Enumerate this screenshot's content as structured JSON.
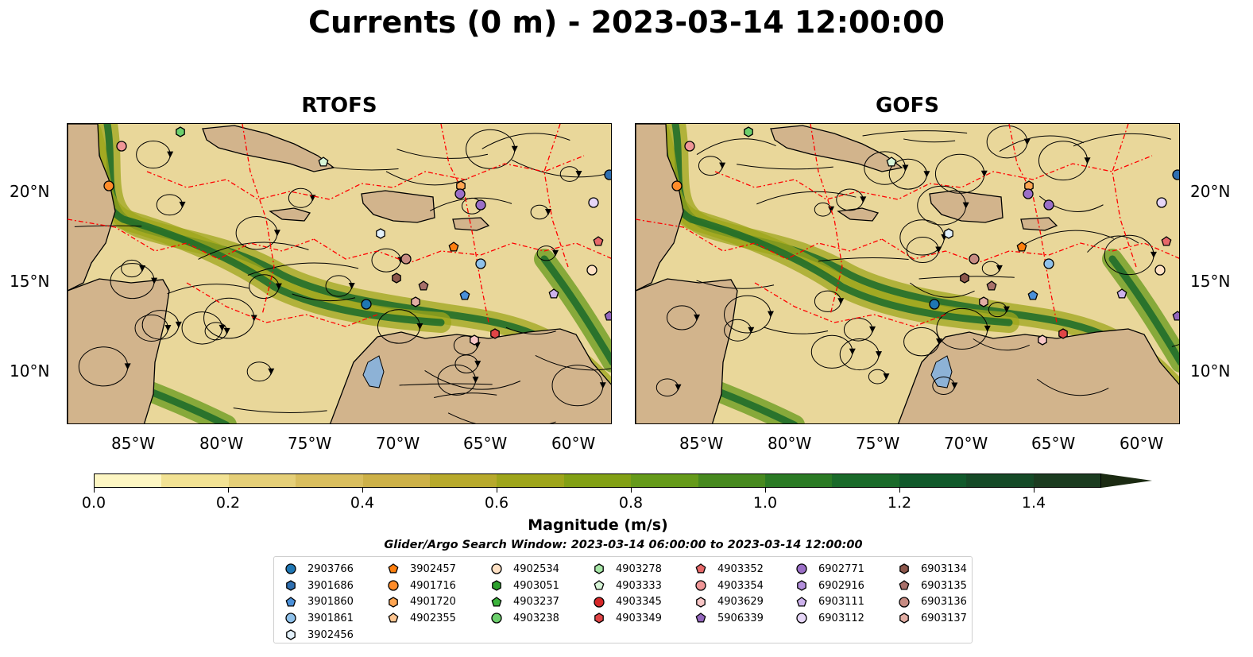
{
  "figure": {
    "title": "Currents (0 m) - 2023-03-14 12:00:00",
    "panels": [
      {
        "name": "RTOFS"
      },
      {
        "name": "GOFS"
      }
    ],
    "lon_ticks": [
      "85°W",
      "80°W",
      "75°W",
      "70°W",
      "65°W",
      "60°W"
    ],
    "lat_ticks": [
      "20°N",
      "15°N",
      "10°N"
    ],
    "colors": {
      "land": "#d2b48c",
      "lake": "#8db2d6",
      "eez": "#ff0000",
      "streamline": "#000000"
    },
    "colorbar": {
      "label": "Magnitude (m/s)",
      "ticks": [
        "0.0",
        "0.2",
        "0.4",
        "0.6",
        "0.8",
        "1.0",
        "1.2",
        "1.4"
      ],
      "range": [
        0.0,
        1.5
      ],
      "extend": "max",
      "colors": [
        "#fdf6c3",
        "#f2e294",
        "#e5cf78",
        "#d9be5e",
        "#cdb148",
        "#b7a92c",
        "#9ea51b",
        "#82a015",
        "#659a1a",
        "#47891f",
        "#2b7a24",
        "#1a6a2a",
        "#11592b",
        "#154a27",
        "#1c3c20",
        "#1f2e18"
      ]
    },
    "search_window": "Glider/Argo Search Window: 2023-03-14 06:00:00 to 2023-03-14 12:00:00",
    "legend": [
      [
        {
          "id": "2903766",
          "marker": "circle",
          "color": "#1f77b4"
        },
        {
          "id": "3901686",
          "marker": "hexagon",
          "color": "#2f6fb0"
        },
        {
          "id": "3901860",
          "marker": "pentagon",
          "color": "#4a90d9"
        },
        {
          "id": "3901861",
          "marker": "circle",
          "color": "#8fc1ea"
        },
        {
          "id": "3902456",
          "marker": "hexagon",
          "color": "#e3f1fb"
        }
      ],
      [
        {
          "id": "3902457",
          "marker": "pentagon",
          "color": "#ff7f0e"
        },
        {
          "id": "4901716",
          "marker": "circle",
          "color": "#ff8c2a"
        },
        {
          "id": "4901720",
          "marker": "hexagon",
          "color": "#ffa551"
        },
        {
          "id": "4902355",
          "marker": "pentagon",
          "color": "#ffc590"
        }
      ],
      [
        {
          "id": "4902534",
          "marker": "circle",
          "color": "#ffe1c4"
        },
        {
          "id": "4903051",
          "marker": "hexagon",
          "color": "#2ca02c"
        },
        {
          "id": "4903237",
          "marker": "pentagon",
          "color": "#3bb33b"
        },
        {
          "id": "4903238",
          "marker": "circle",
          "color": "#6ccf6c"
        }
      ],
      [
        {
          "id": "4903278",
          "marker": "hexagon",
          "color": "#a6e6a6"
        },
        {
          "id": "4903333",
          "marker": "pentagon",
          "color": "#d7f5d7"
        },
        {
          "id": "4903345",
          "marker": "circle",
          "color": "#d62728"
        },
        {
          "id": "4903349",
          "marker": "hexagon",
          "color": "#e04446"
        }
      ],
      [
        {
          "id": "4903352",
          "marker": "pentagon",
          "color": "#e8696a"
        },
        {
          "id": "4903354",
          "marker": "circle",
          "color": "#f09697"
        },
        {
          "id": "4903629",
          "marker": "hexagon",
          "color": "#f8c6c6"
        },
        {
          "id": "5906339",
          "marker": "pentagon",
          "color": "#9467bd"
        }
      ],
      [
        {
          "id": "6902771",
          "marker": "circle",
          "color": "#9b6fc7"
        },
        {
          "id": "6902916",
          "marker": "hexagon",
          "color": "#b38fdc"
        },
        {
          "id": "6903111",
          "marker": "pentagon",
          "color": "#cdb2ec"
        },
        {
          "id": "6903112",
          "marker": "circle",
          "color": "#e6d6f7"
        }
      ],
      [
        {
          "id": "6903134",
          "marker": "hexagon",
          "color": "#8c564b"
        },
        {
          "id": "6903135",
          "marker": "pentagon",
          "color": "#a8706a"
        },
        {
          "id": "6903136",
          "marker": "circle",
          "color": "#c78b82"
        },
        {
          "id": "6903137",
          "marker": "hexagon",
          "color": "#e2aea4"
        }
      ]
    ]
  }
}
